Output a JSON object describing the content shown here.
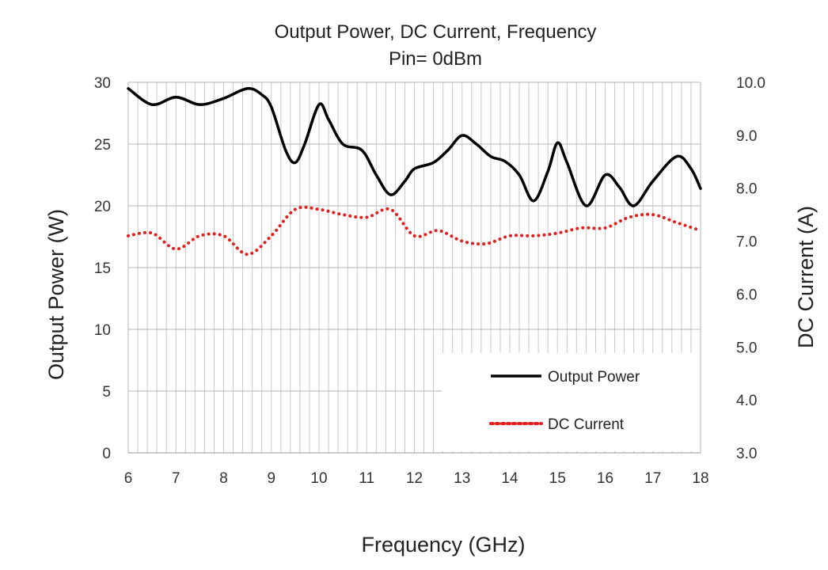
{
  "chart_data": {
    "type": "line",
    "title": "Output Power, DC Current, Frequency",
    "subtitle": "Pin= 0dBm",
    "xlabel": "Frequency (GHz)",
    "ylabel": "Output Power (W)",
    "y2label": "DC Current (A)",
    "xlim": [
      6,
      18
    ],
    "ylim": [
      0,
      30
    ],
    "y2lim": [
      3.0,
      10.0
    ],
    "x_ticks": [
      "6",
      "7",
      "8",
      "9",
      "10",
      "11",
      "12",
      "13",
      "14",
      "15",
      "16",
      "17",
      "18"
    ],
    "y_ticks": [
      "0",
      "5",
      "10",
      "15",
      "20",
      "25",
      "30"
    ],
    "y2_ticks": [
      "3.0",
      "4.0",
      "5.0",
      "6.0",
      "7.0",
      "8.0",
      "9.0",
      "10.0"
    ],
    "grid": true,
    "legend_position": "bottom-right",
    "series": [
      {
        "name": "Output Power",
        "axis": "left",
        "color": "#000000",
        "style": "solid",
        "x": [
          6.0,
          6.5,
          7.0,
          7.5,
          8.0,
          8.5,
          8.8,
          9.0,
          9.3,
          9.5,
          9.7,
          10.0,
          10.2,
          10.5,
          10.9,
          11.2,
          11.5,
          11.8,
          12.0,
          12.4,
          12.7,
          13.0,
          13.3,
          13.6,
          13.9,
          14.2,
          14.5,
          14.8,
          15.0,
          15.2,
          15.6,
          16.0,
          16.3,
          16.6,
          17.0,
          17.5,
          17.8,
          18.0
        ],
        "values": [
          29.5,
          28.2,
          28.8,
          28.2,
          28.7,
          29.5,
          29.0,
          28.0,
          24.5,
          23.5,
          25.0,
          28.2,
          27.0,
          25.0,
          24.5,
          22.5,
          20.9,
          22.0,
          23.0,
          23.5,
          24.5,
          25.7,
          25.0,
          24.0,
          23.6,
          22.5,
          20.4,
          22.8,
          25.1,
          23.5,
          20.0,
          22.5,
          21.5,
          20.0,
          22.0,
          24.0,
          23.0,
          21.4
        ]
      },
      {
        "name": "DC Current",
        "axis": "right",
        "color": "#e01f1f",
        "style": "dotted",
        "x": [
          6.0,
          6.5,
          7.0,
          7.5,
          8.0,
          8.5,
          9.0,
          9.5,
          10.0,
          10.5,
          11.0,
          11.5,
          12.0,
          12.5,
          13.0,
          13.5,
          14.0,
          14.5,
          15.0,
          15.5,
          16.0,
          16.5,
          17.0,
          17.5,
          18.0
        ],
        "values": [
          7.1,
          7.15,
          6.85,
          7.1,
          7.1,
          6.75,
          7.1,
          7.6,
          7.6,
          7.5,
          7.45,
          7.6,
          7.1,
          7.2,
          7.0,
          6.95,
          7.1,
          7.1,
          7.15,
          7.25,
          7.25,
          7.45,
          7.5,
          7.35,
          7.2
        ]
      }
    ]
  }
}
